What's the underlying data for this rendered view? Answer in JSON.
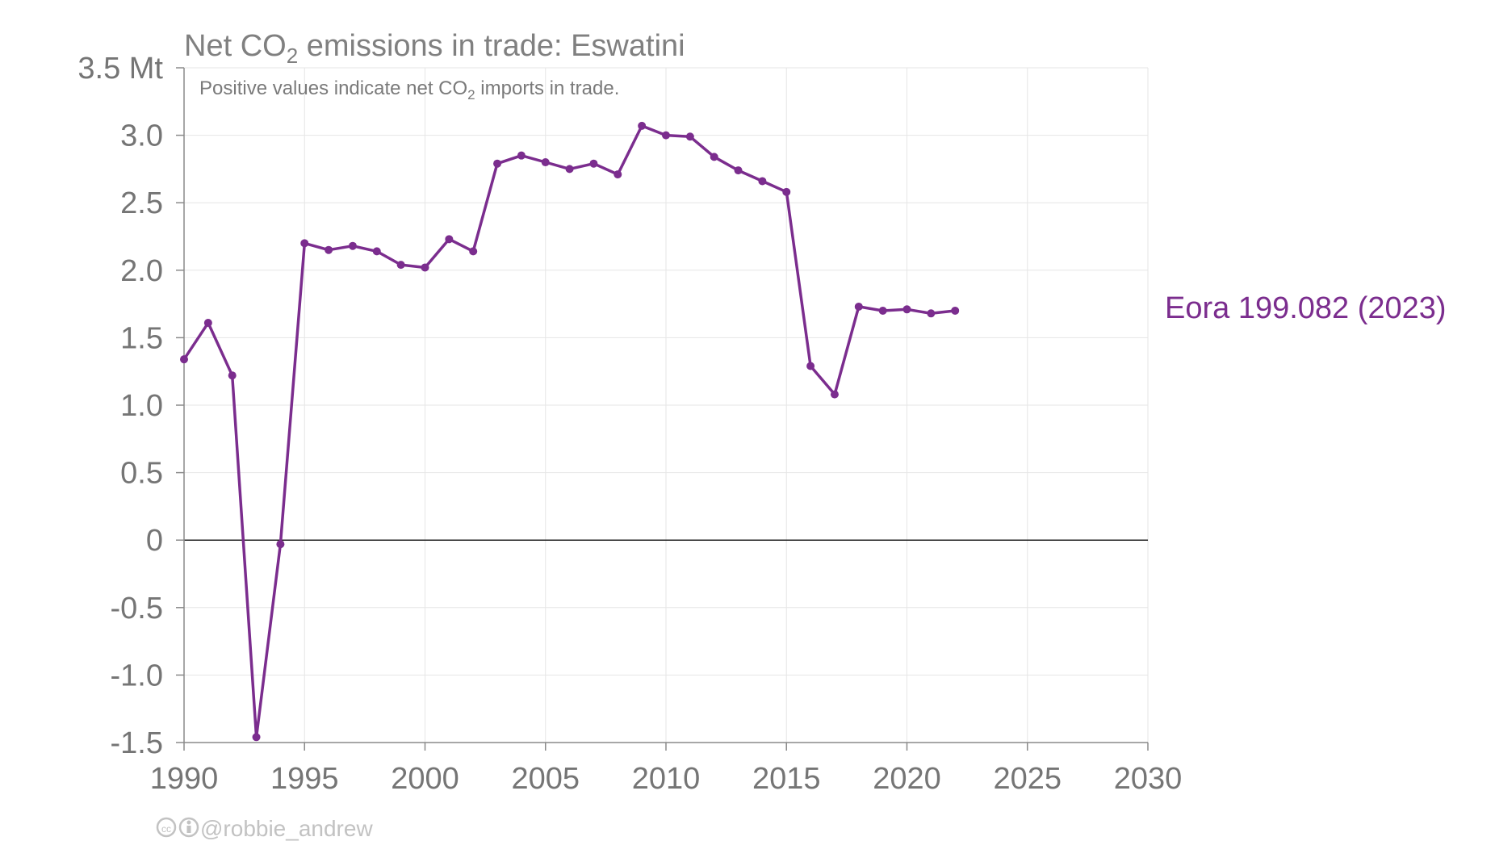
{
  "chart_data": {
    "type": "line",
    "title_prefix": "Net CO",
    "title_sub": "2",
    "title_suffix": " emissions in trade: Eswatini",
    "subtitle_prefix": "Positive values indicate net CO",
    "subtitle_sub": "2",
    "subtitle_suffix": " imports in trade.",
    "xlim": [
      1990,
      2030
    ],
    "ylim": [
      -1.5,
      3.5
    ],
    "x_ticks": [
      1990,
      1995,
      2000,
      2005,
      2010,
      2015,
      2020,
      2025,
      2030
    ],
    "y_ticks": [
      {
        "value": -1.5,
        "label": "-1.5"
      },
      {
        "value": -1.0,
        "label": "-1.0"
      },
      {
        "value": -0.5,
        "label": "-0.5"
      },
      {
        "value": 0,
        "label": "0"
      },
      {
        "value": 0.5,
        "label": "0.5"
      },
      {
        "value": 1.0,
        "label": "1.0"
      },
      {
        "value": 1.5,
        "label": "1.5"
      },
      {
        "value": 2.0,
        "label": "2.0"
      },
      {
        "value": 2.5,
        "label": "2.5"
      },
      {
        "value": 3.0,
        "label": "3.0"
      },
      {
        "value": 3.5,
        "label": "3.5 Mt"
      }
    ],
    "grid": true,
    "series": [
      {
        "name": "Eora 199.082 (2023)",
        "color": "#7b2d8e",
        "x": [
          1990,
          1991,
          1992,
          1993,
          1994,
          1995,
          1996,
          1997,
          1998,
          1999,
          2000,
          2001,
          2002,
          2003,
          2004,
          2005,
          2006,
          2007,
          2008,
          2009,
          2010,
          2011,
          2012,
          2013,
          2014,
          2015,
          2016,
          2017,
          2018,
          2019,
          2020,
          2021,
          2022
        ],
        "y": [
          1.34,
          1.61,
          1.22,
          -1.46,
          -0.03,
          2.2,
          2.15,
          2.18,
          2.14,
          2.04,
          2.02,
          2.23,
          2.14,
          2.79,
          2.85,
          2.8,
          2.75,
          2.79,
          2.71,
          3.07,
          3.0,
          2.99,
          2.84,
          2.74,
          2.66,
          2.58,
          1.29,
          1.08,
          1.73,
          1.7,
          1.71,
          1.68,
          1.7
        ]
      }
    ],
    "credit": "@robbie_andrew"
  }
}
